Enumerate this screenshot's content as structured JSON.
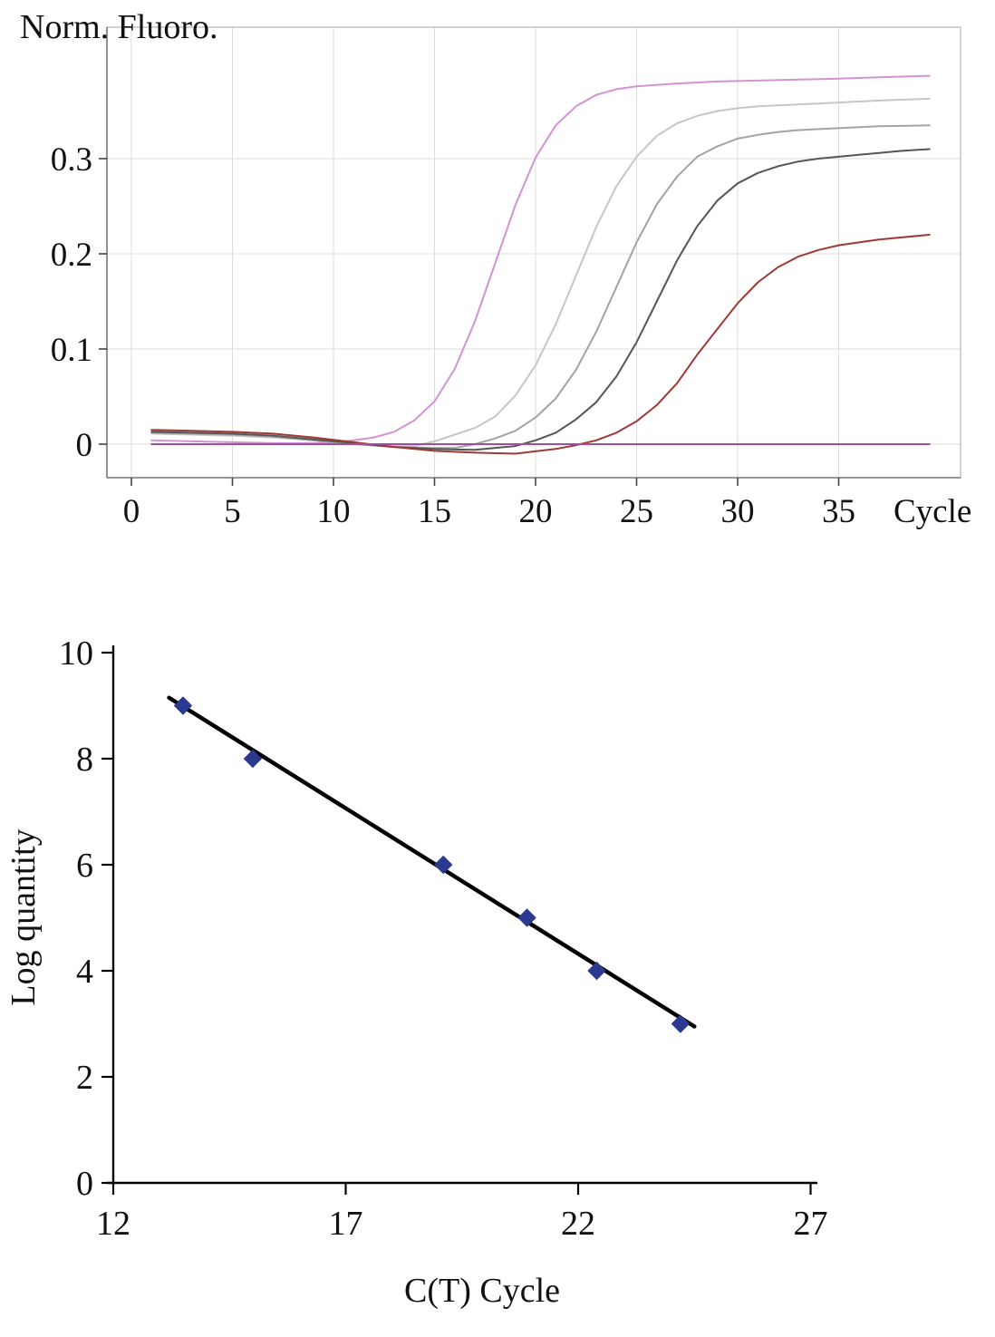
{
  "figure": {
    "description": "qPCR amplification curves with standard curve",
    "background": "#ffffff"
  },
  "chart_data": [
    {
      "type": "line",
      "title": "",
      "xlabel": "Cycle",
      "ylabel": "Norm. Fluoro.",
      "xlim": [
        0,
        40
      ],
      "ylim": [
        -0.035,
        0.44
      ],
      "x_ticks": [
        0,
        5,
        10,
        15,
        20,
        25,
        30,
        35
      ],
      "y_ticks": [
        0,
        0.1,
        0.2,
        0.3
      ],
      "grid": true,
      "legend": "none",
      "grid_color": "#dcdcdc",
      "frame_color": "#b5b5b5",
      "axis_color": "#7a7a7a",
      "series": [
        {
          "name": "amplification-curve-1",
          "color": "#d293d2",
          "points": [
            [
              1,
              0.004
            ],
            [
              3,
              0.003
            ],
            [
              5,
              0.002
            ],
            [
              7,
              0.001
            ],
            [
              9,
              0.001
            ],
            [
              10,
              0.002
            ],
            [
              11,
              0.004
            ],
            [
              12,
              0.007
            ],
            [
              13,
              0.013
            ],
            [
              14,
              0.025
            ],
            [
              15,
              0.045
            ],
            [
              16,
              0.079
            ],
            [
              17,
              0.129
            ],
            [
              18,
              0.19
            ],
            [
              19,
              0.251
            ],
            [
              20,
              0.301
            ],
            [
              21,
              0.335
            ],
            [
              22,
              0.355
            ],
            [
              23,
              0.367
            ],
            [
              24,
              0.373
            ],
            [
              25,
              0.376
            ],
            [
              27,
              0.379
            ],
            [
              29,
              0.381
            ],
            [
              31,
              0.382
            ],
            [
              33,
              0.383
            ],
            [
              35,
              0.384
            ],
            [
              37,
              0.3855
            ],
            [
              39.5,
              0.387
            ]
          ]
        },
        {
          "name": "amplification-curve-2",
          "color": "#c6c6c6",
          "points": [
            [
              1,
              0.011
            ],
            [
              3,
              0.01
            ],
            [
              5,
              0.009
            ],
            [
              7,
              0.007
            ],
            [
              9,
              0.004
            ],
            [
              11,
              0.001
            ],
            [
              13,
              -0.002
            ],
            [
              14,
              -0.002
            ],
            [
              15,
              0.003
            ],
            [
              16,
              0.01
            ],
            [
              17,
              0.017
            ],
            [
              18,
              0.029
            ],
            [
              19,
              0.051
            ],
            [
              20,
              0.083
            ],
            [
              21,
              0.126
            ],
            [
              22,
              0.177
            ],
            [
              23,
              0.228
            ],
            [
              24,
              0.271
            ],
            [
              25,
              0.302
            ],
            [
              26,
              0.324
            ],
            [
              27,
              0.337
            ],
            [
              28,
              0.345
            ],
            [
              29,
              0.35
            ],
            [
              30,
              0.353
            ],
            [
              31,
              0.355
            ],
            [
              33,
              0.357
            ],
            [
              35,
              0.359
            ],
            [
              37,
              0.361
            ],
            [
              39.5,
              0.363
            ]
          ]
        },
        {
          "name": "amplification-curve-3",
          "color": "#a3a3a3",
          "points": [
            [
              1,
              0.012
            ],
            [
              3,
              0.011
            ],
            [
              5,
              0.01
            ],
            [
              7,
              0.008
            ],
            [
              9,
              0.004
            ],
            [
              11,
              0
            ],
            [
              13,
              -0.003
            ],
            [
              15,
              -0.004
            ],
            [
              16,
              -0.004
            ],
            [
              17,
              0
            ],
            [
              18,
              0.006
            ],
            [
              19,
              0.014
            ],
            [
              20,
              0.028
            ],
            [
              21,
              0.048
            ],
            [
              22,
              0.078
            ],
            [
              23,
              0.118
            ],
            [
              24,
              0.165
            ],
            [
              25,
              0.212
            ],
            [
              26,
              0.252
            ],
            [
              27,
              0.281
            ],
            [
              28,
              0.302
            ],
            [
              29,
              0.313
            ],
            [
              30,
              0.321
            ],
            [
              31,
              0.325
            ],
            [
              32,
              0.328
            ],
            [
              33,
              0.33
            ],
            [
              35,
              0.332
            ],
            [
              37,
              0.334
            ],
            [
              39.5,
              0.335
            ]
          ]
        },
        {
          "name": "amplification-curve-4",
          "color": "#565656",
          "points": [
            [
              1,
              0.013
            ],
            [
              3,
              0.012
            ],
            [
              5,
              0.011
            ],
            [
              7,
              0.009
            ],
            [
              9,
              0.005
            ],
            [
              11,
              0.001
            ],
            [
              13,
              -0.003
            ],
            [
              15,
              -0.005
            ],
            [
              17,
              -0.006
            ],
            [
              19,
              -0.002
            ],
            [
              20,
              0.004
            ],
            [
              21,
              0.012
            ],
            [
              22,
              0.026
            ],
            [
              23,
              0.044
            ],
            [
              24,
              0.071
            ],
            [
              25,
              0.107
            ],
            [
              26,
              0.15
            ],
            [
              27,
              0.193
            ],
            [
              28,
              0.229
            ],
            [
              29,
              0.256
            ],
            [
              30,
              0.274
            ],
            [
              31,
              0.285
            ],
            [
              32,
              0.292
            ],
            [
              33,
              0.297
            ],
            [
              34,
              0.3
            ],
            [
              35,
              0.302
            ],
            [
              36,
              0.304
            ],
            [
              37,
              0.306
            ],
            [
              38,
              0.308
            ],
            [
              39.5,
              0.31
            ]
          ]
        },
        {
          "name": "amplification-curve-5",
          "color": "#9e3a36",
          "points": [
            [
              1,
              0.015
            ],
            [
              3,
              0.014
            ],
            [
              5,
              0.013
            ],
            [
              7,
              0.011
            ],
            [
              9,
              0.007
            ],
            [
              11,
              0.002
            ],
            [
              13,
              -0.003
            ],
            [
              15,
              -0.007
            ],
            [
              17,
              -0.009
            ],
            [
              19,
              -0.01
            ],
            [
              21,
              -0.005
            ],
            [
              22,
              -0.001
            ],
            [
              23,
              0.004
            ],
            [
              24,
              0.012
            ],
            [
              25,
              0.024
            ],
            [
              26,
              0.041
            ],
            [
              27,
              0.064
            ],
            [
              28,
              0.094
            ],
            [
              29,
              0.121
            ],
            [
              30,
              0.148
            ],
            [
              31,
              0.17
            ],
            [
              32,
              0.186
            ],
            [
              33,
              0.197
            ],
            [
              34,
              0.204
            ],
            [
              35,
              0.209
            ],
            [
              36,
              0.212
            ],
            [
              37,
              0.215
            ],
            [
              38,
              0.217
            ],
            [
              39.5,
              0.22
            ]
          ]
        },
        {
          "name": "ntc-flat-baseline",
          "color": "#a04fa0",
          "points": [
            [
              1,
              0
            ],
            [
              39.5,
              0
            ]
          ]
        }
      ]
    },
    {
      "type": "scatter",
      "title": "",
      "xlabel": "C(T) Cycle",
      "ylabel": "Log quantity",
      "xlim": [
        12,
        27
      ],
      "ylim": [
        0,
        10
      ],
      "x_ticks": [
        12,
        17,
        22,
        27
      ],
      "y_ticks": [
        0,
        2,
        4,
        6,
        8,
        10
      ],
      "grid": false,
      "legend": "none",
      "marker": "diamond",
      "marker_color": "#2b3990",
      "axis_color": "#000000",
      "points": [
        [
          13.5,
          9
        ],
        [
          15,
          8
        ],
        [
          19.1,
          6
        ],
        [
          20.9,
          5
        ],
        [
          22.4,
          4
        ],
        [
          24.2,
          3
        ]
      ],
      "fit_line": {
        "x1": 13.2,
        "y1": 9.15,
        "x2": 24.5,
        "y2": 2.95,
        "color": "#000000",
        "width": 4.5
      }
    }
  ]
}
